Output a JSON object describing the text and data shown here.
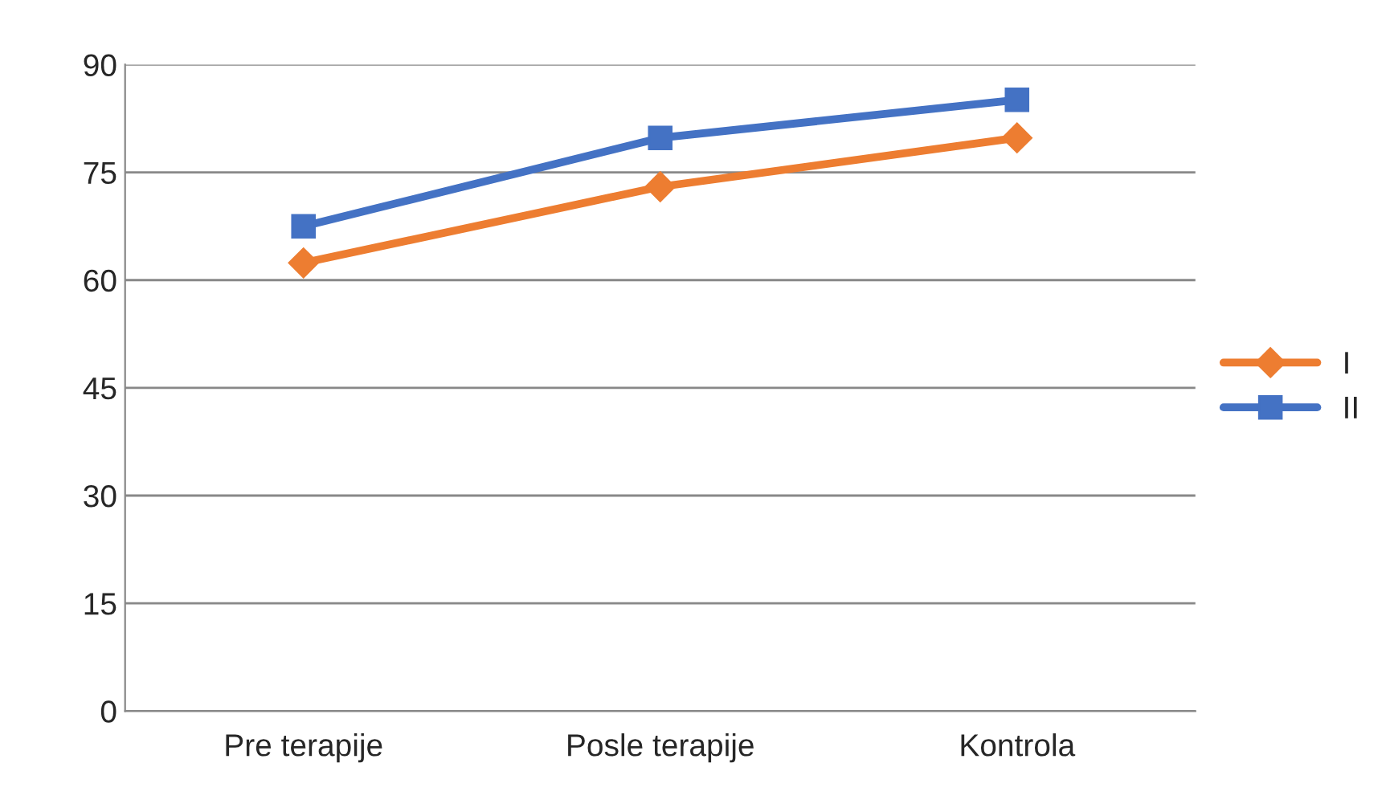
{
  "chart_data": {
    "type": "line",
    "categories": [
      "Pre terapije",
      "Posle terapije",
      "Kontrola"
    ],
    "series": [
      {
        "name": "I",
        "color": "#ed7d31",
        "marker": "diamond",
        "values": [
          62.4,
          73,
          79.8
        ]
      },
      {
        "name": "II",
        "color": "#4472c4",
        "marker": "square",
        "values": [
          67.5,
          79.8,
          85.1
        ]
      }
    ],
    "ylim": [
      0,
      90
    ],
    "yticks": [
      0,
      15,
      30,
      45,
      60,
      75,
      90
    ],
    "grid": "y",
    "legend": "right"
  }
}
